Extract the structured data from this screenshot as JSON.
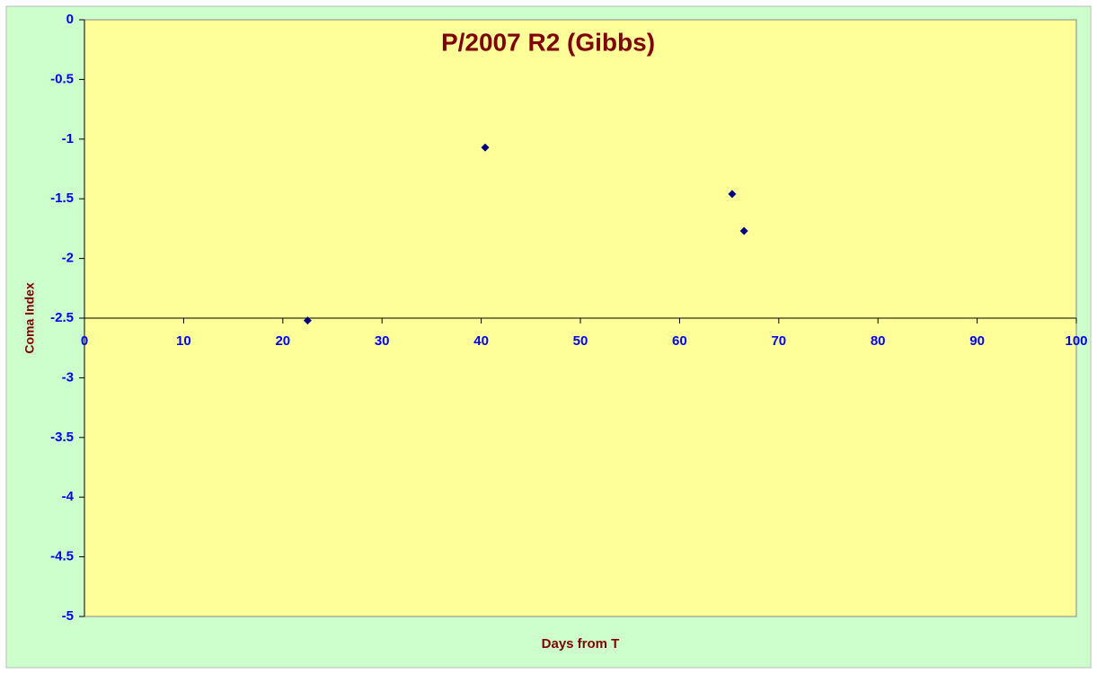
{
  "chart_data": {
    "type": "scatter",
    "title": "P/2007 R2 (Gibbs)",
    "x_label": "Days from T",
    "y_label": "Coma Index",
    "series": [
      {
        "name": "Coma Index",
        "color": "#000080",
        "x": [
          22.5,
          40.4,
          65.3,
          66.5
        ],
        "values": [
          -2.52,
          -1.07,
          -1.46,
          -1.77
        ]
      }
    ],
    "xlim": [
      0,
      100
    ],
    "xticks": [
      0,
      10,
      20,
      30,
      40,
      50,
      60,
      70,
      80,
      90,
      100
    ],
    "ylim": [
      -5,
      0
    ],
    "yticks": [
      0,
      -0.5,
      -1,
      -1.5,
      -2,
      -2.5,
      -3,
      -3.5,
      -4,
      -4.5,
      -5
    ],
    "xaxis_crossing": -2.5,
    "plot_color": "#ffff99",
    "background_color": "#ccffcc"
  }
}
